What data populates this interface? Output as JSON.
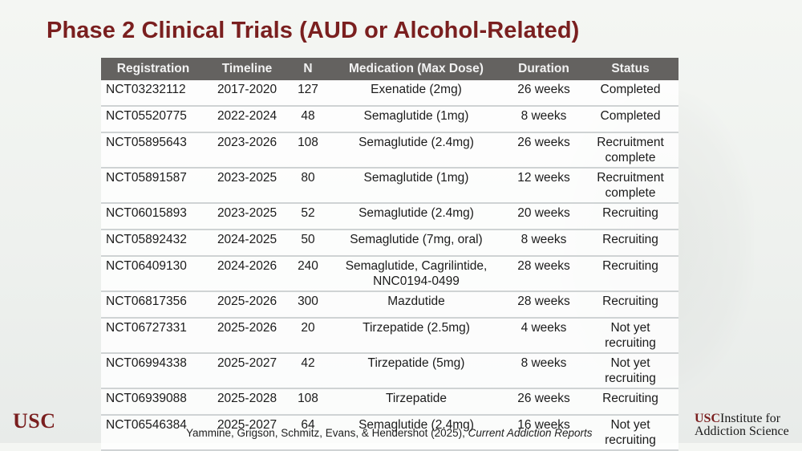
{
  "title": "Phase 2 Clinical Trials (AUD or Alcohol-Related)",
  "table": {
    "headers": [
      "Registration",
      "Timeline",
      "N",
      "Medication (Max Dose)",
      "Duration",
      "Status"
    ],
    "rows": [
      {
        "registration": "NCT03232112",
        "timeline": "2017-2020",
        "n": "127",
        "medication": "Exenatide (2mg)",
        "duration": "26 weeks",
        "status": "Completed"
      },
      {
        "registration": "NCT05520775",
        "timeline": "2022-2024",
        "n": "48",
        "medication": "Semaglutide (1mg)",
        "duration": "8 weeks",
        "status": "Completed"
      },
      {
        "registration": "NCT05895643",
        "timeline": "2023-2026",
        "n": "108",
        "medication": "Semaglutide (2.4mg)",
        "duration": "26 weeks",
        "status": "Recruitment complete"
      },
      {
        "registration": "NCT05891587",
        "timeline": "2023-2025",
        "n": "80",
        "medication": "Semaglutide (1mg)",
        "duration": "12 weeks",
        "status": "Recruitment complete"
      },
      {
        "registration": "NCT06015893",
        "timeline": "2023-2025",
        "n": "52",
        "medication": "Semaglutide (2.4mg)",
        "duration": "20 weeks",
        "status": "Recruiting"
      },
      {
        "registration": "NCT05892432",
        "timeline": "2024-2025",
        "n": "50",
        "medication": "Semaglutide (7mg, oral)",
        "duration": "8 weeks",
        "status": "Recruiting"
      },
      {
        "registration": "NCT06409130",
        "timeline": "2024-2026",
        "n": "240",
        "medication": "Semaglutide, Cagrilintide, NNC0194-0499",
        "duration": "28 weeks",
        "status": "Recruiting"
      },
      {
        "registration": "NCT06817356",
        "timeline": "2025-2026",
        "n": "300",
        "medication": "Mazdutide",
        "duration": "28 weeks",
        "status": "Recruiting"
      },
      {
        "registration": "NCT06727331",
        "timeline": "2025-2026",
        "n": "20",
        "medication": "Tirzepatide (2.5mg)",
        "duration": "4 weeks",
        "status": "Not yet recruiting"
      },
      {
        "registration": "NCT06994338",
        "timeline": "2025-2027",
        "n": "42",
        "medication": "Tirzepatide (5mg)",
        "duration": "8 weeks",
        "status": "Not yet recruiting"
      },
      {
        "registration": "NCT06939088",
        "timeline": "2025-2028",
        "n": "108",
        "medication": "Tirzepatide",
        "duration": "26 weeks",
        "status": "Recruiting"
      },
      {
        "registration": "NCT06546384",
        "timeline": "2025-2027",
        "n": "64",
        "medication": "Semaglutide (2.4mg)",
        "duration": "16 weeks",
        "status": "Not yet recruiting"
      }
    ]
  },
  "footer": {
    "logo_left": "USC",
    "citation_authors": "Yammine, Grigson, Schmitz, Evans, & Hendershot (2025),",
    "citation_journal": "Current Addiction Reports",
    "logo_right_line1_usc": "USC",
    "logo_right_line1_rest": "Institute for",
    "logo_right_line2": "Addiction Science"
  },
  "colors": {
    "title": "#7a1f1f",
    "header_bg": "#646260",
    "header_text": "#f2f2f2",
    "row_bg": "#ffffff"
  }
}
